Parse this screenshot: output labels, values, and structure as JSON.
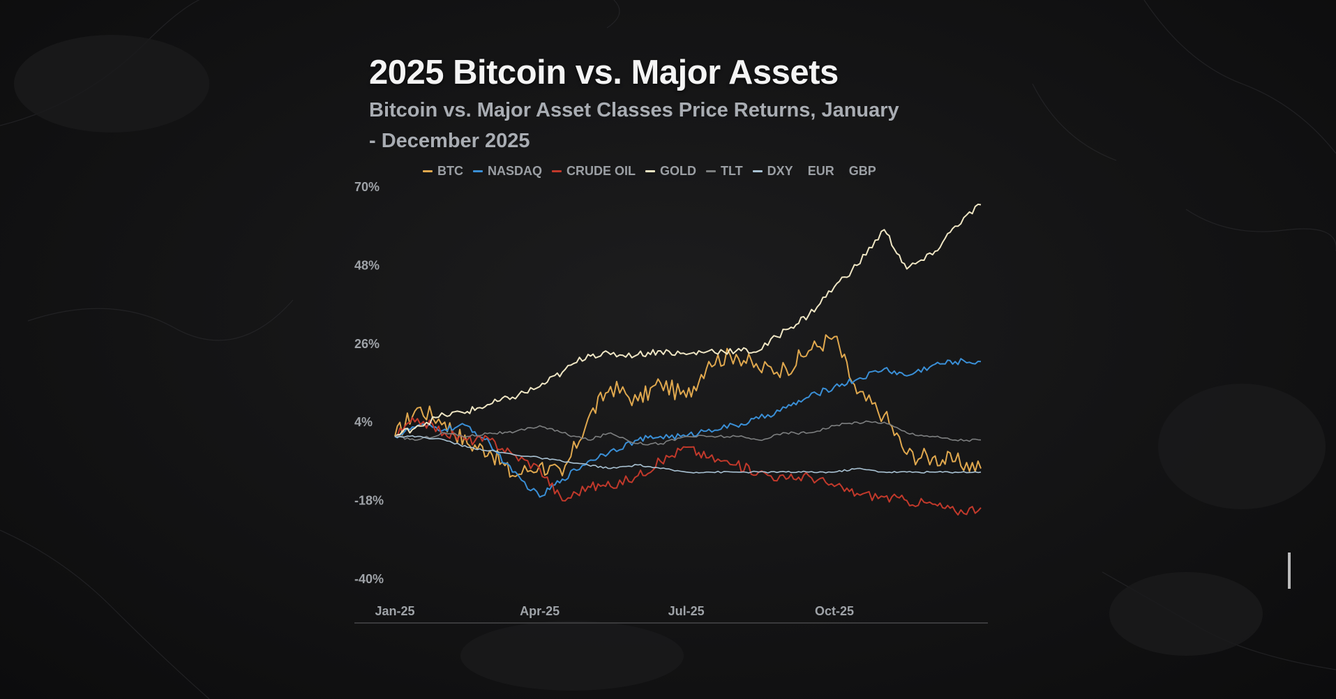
{
  "header": {
    "title": "2025 Bitcoin vs. Major Assets",
    "subtitle": "Bitcoin vs. Major Asset Classes Price Returns, January - December 2025"
  },
  "legend": [
    {
      "name": "BTC",
      "color": "#e0a84e"
    },
    {
      "name": "NASDAQ",
      "color": "#3a8fd6"
    },
    {
      "name": "CRUDE OIL",
      "color": "#c2392b"
    },
    {
      "name": "GOLD",
      "color": "#efe6c4"
    },
    {
      "name": "TLT",
      "color": "#7d7f80"
    },
    {
      "name": "DXY",
      "color": "#a9c2d3"
    },
    {
      "name": "EUR",
      "color": ""
    },
    {
      "name": "GBP",
      "color": ""
    }
  ],
  "chart_data": {
    "type": "line",
    "title": "2025 Bitcoin vs. Major Assets",
    "subtitle": "Bitcoin vs. Major Asset Classes Price Returns, January - December 2025",
    "xlabel": "",
    "ylabel": "",
    "x_ticks": [
      "Jan-25",
      "Apr-25",
      "Jul-25",
      "Oct-25"
    ],
    "y_ticks": [
      "70%",
      "48%",
      "26%",
      "4%",
      "-18%",
      "-40%"
    ],
    "ylim": [
      -40,
      70
    ],
    "grid": false,
    "legend_position": "top",
    "x": [
      "2025-01-01",
      "2025-01-15",
      "2025-02-01",
      "2025-02-15",
      "2025-03-01",
      "2025-03-15",
      "2025-04-01",
      "2025-04-15",
      "2025-05-01",
      "2025-05-15",
      "2025-06-01",
      "2025-06-15",
      "2025-07-01",
      "2025-07-15",
      "2025-08-01",
      "2025-08-15",
      "2025-09-01",
      "2025-09-15",
      "2025-10-01",
      "2025-10-15",
      "2025-11-01",
      "2025-11-15",
      "2025-12-01",
      "2025-12-15",
      "2025-12-31"
    ],
    "series": [
      {
        "name": "BTC",
        "color": "#e0a84e",
        "values": [
          0,
          8,
          4,
          -2,
          -4,
          -11,
          -8,
          -11,
          5,
          14,
          10,
          15,
          11,
          21,
          23,
          19,
          19,
          24,
          28,
          12,
          6,
          -5,
          -6,
          -7,
          -9
        ]
      },
      {
        "name": "NASDAQ",
        "color": "#3a8fd6",
        "values": [
          0,
          3,
          2,
          3,
          -2,
          -10,
          -17,
          -12,
          -7,
          -4,
          -1,
          0,
          0,
          2,
          3,
          5,
          8,
          11,
          14,
          16,
          19,
          17,
          20,
          21,
          21
        ]
      },
      {
        "name": "CRUDE OIL",
        "color": "#c2392b",
        "values": [
          0,
          5,
          1,
          -1,
          -1,
          -5,
          -9,
          -18,
          -14,
          -14,
          -11,
          -7,
          -3,
          -6,
          -8,
          -10,
          -12,
          -11,
          -14,
          -16,
          -17,
          -18,
          -19,
          -21,
          -20
        ]
      },
      {
        "name": "GOLD",
        "color": "#efe6c4",
        "values": [
          0,
          3,
          6,
          7,
          9,
          11,
          14,
          18,
          23,
          23,
          23,
          24,
          23,
          24,
          24,
          24,
          30,
          34,
          42,
          48,
          58,
          47,
          51,
          59,
          65
        ]
      },
      {
        "name": "TLT",
        "color": "#7d7f80",
        "values": [
          0,
          -1,
          1,
          0,
          1,
          1,
          3,
          1,
          -1,
          1,
          -2,
          -2,
          0,
          0,
          0,
          -1,
          1,
          1,
          3,
          4,
          4,
          1,
          0,
          -1,
          -1
        ]
      },
      {
        "name": "DXY",
        "color": "#a9c2d3",
        "values": [
          0,
          0,
          -1,
          -3,
          -4,
          -5,
          -6,
          -7,
          -8,
          -9,
          -8,
          -9,
          -10,
          -10,
          -10,
          -10,
          -10,
          -10,
          -10,
          -9,
          -10,
          -10,
          -10,
          -10,
          -10
        ]
      }
    ]
  }
}
